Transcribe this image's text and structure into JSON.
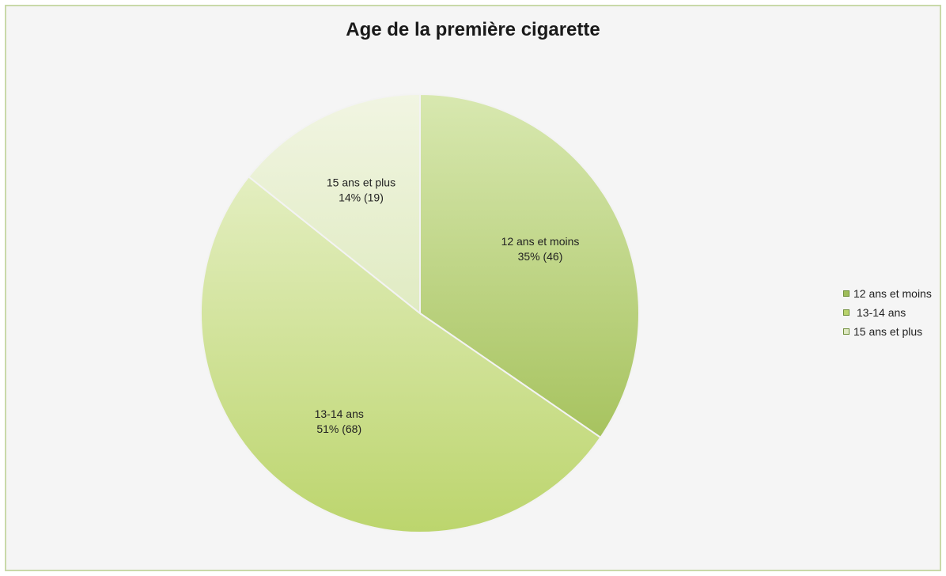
{
  "chart_data": {
    "type": "pie",
    "title": "Age de la première cigarette",
    "slices": [
      {
        "label": "12 ans et moins",
        "percent_text": "35% (46)",
        "value": 46,
        "percent": 35,
        "color": "#b8d27a"
      },
      {
        "label": "13-14 ans",
        "percent_text": "51% (68)",
        "value": 68,
        "percent": 51,
        "color": "#cfe18f"
      },
      {
        "label": "15 ans et plus",
        "percent_text": "14% (19)",
        "value": 19,
        "percent": 14,
        "color": "#e8efcf"
      }
    ],
    "legend": {
      "placement": "right",
      "items": [
        "12 ans et moins",
        "13-14 ans",
        "15 ans et plus"
      ]
    }
  }
}
